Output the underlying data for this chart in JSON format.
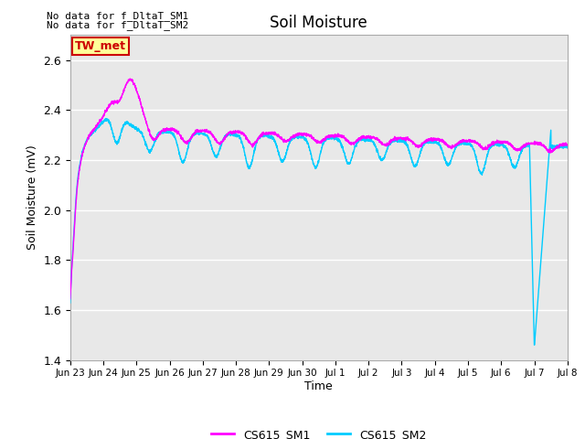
{
  "title": "Soil Moisture",
  "ylabel": "Soil Moisture (mV)",
  "xlabel": "Time",
  "text_no_data_1": "No data for f_DltaT_SM1",
  "text_no_data_2": "No data for f_DltaT_SM2",
  "tw_met_label": "TW_met",
  "legend_labels": [
    "CS615_SM1",
    "CS615_SM2"
  ],
  "line_colors": [
    "#ff00ff",
    "#00ccff"
  ],
  "ylim": [
    1.4,
    2.7
  ],
  "yticks": [
    1.4,
    1.6,
    1.8,
    2.0,
    2.2,
    2.4,
    2.6
  ],
  "background_color": "#e8e8e8",
  "fig_background": "#ffffff",
  "tw_met_bg": "#ffff99",
  "tw_met_border": "#cc0000",
  "tw_met_text": "#cc0000",
  "tick_labels": [
    "Jun 23",
    "Jun 24",
    "Jun 25",
    "Jun 26",
    "Jun 27",
    "Jun 28",
    "Jun 29",
    "Jun 30",
    "Jul 1",
    "Jul 2",
    "Jul 3",
    "Jul 4",
    "Jul 5",
    "Jul 6",
    "Jul 7",
    "Jul 8"
  ]
}
